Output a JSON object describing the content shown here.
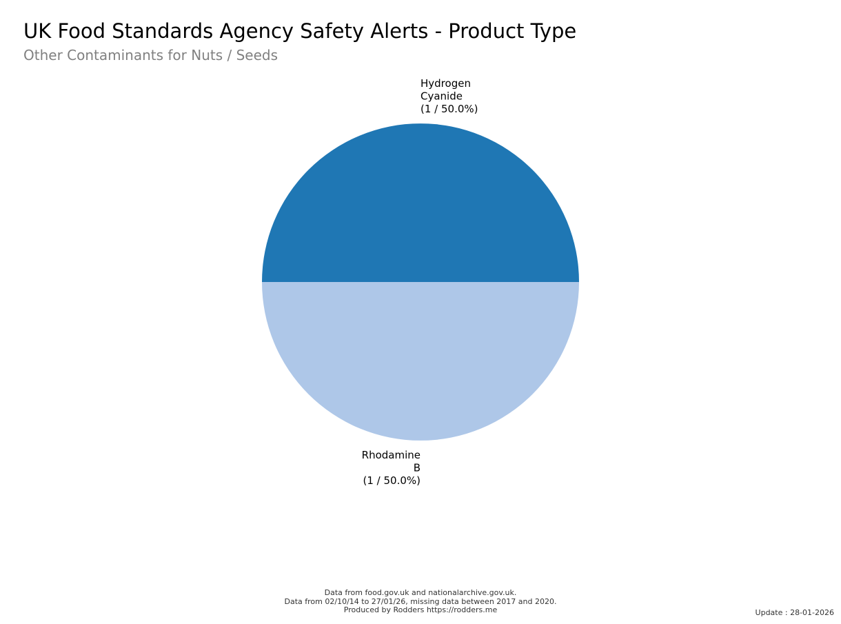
{
  "chart_data": {
    "type": "pie",
    "title": "UK Food Standards Agency Safety Alerts - Product Type",
    "subtitle": "Other Contaminants for Nuts / Seeds",
    "slices": [
      {
        "label_lines": [
          "Hydrogen",
          "Cyanide",
          "(1 / 50.0%)"
        ],
        "value": 1,
        "percent": 50.0,
        "color": "#1f77b4"
      },
      {
        "label_lines": [
          "Rhodamine",
          "B",
          "(1 / 50.0%)"
        ],
        "value": 1,
        "percent": 50.0,
        "color": "#aec7e8"
      }
    ]
  },
  "footer": {
    "line1": "Data from food.gov.uk and nationalarchive.gov.uk.",
    "line2": "Data from 02/10/14 to 27/01/26, missing data between 2017 and 2020.",
    "line3": "Produced by Rodders https://rodders.me"
  },
  "update": "Update : 28-01-2026"
}
